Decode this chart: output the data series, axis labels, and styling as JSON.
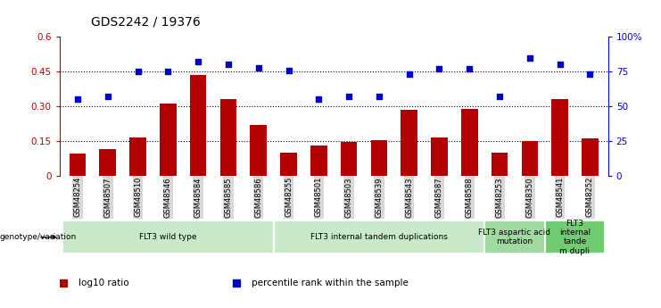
{
  "title": "GDS2242 / 19376",
  "samples": [
    "GSM48254",
    "GSM48507",
    "GSM48510",
    "GSM48546",
    "GSM48584",
    "GSM48585",
    "GSM48586",
    "GSM48255",
    "GSM48501",
    "GSM48503",
    "GSM48539",
    "GSM48543",
    "GSM48587",
    "GSM48588",
    "GSM48253",
    "GSM48350",
    "GSM48541",
    "GSM48252"
  ],
  "bar_values": [
    0.095,
    0.115,
    0.165,
    0.31,
    0.435,
    0.33,
    0.22,
    0.1,
    0.13,
    0.145,
    0.155,
    0.285,
    0.165,
    0.29,
    0.1,
    0.15,
    0.33,
    0.16
  ],
  "dot_values_pct": [
    55,
    57,
    75,
    75,
    82,
    80,
    78,
    76,
    55,
    57,
    57,
    73,
    77,
    77,
    57,
    85,
    80,
    73
  ],
  "groups": [
    {
      "label": "FLT3 wild type",
      "start": 0,
      "end": 6,
      "color": "#c8eac8"
    },
    {
      "label": "FLT3 internal tandem duplications",
      "start": 7,
      "end": 13,
      "color": "#c8eac8"
    },
    {
      "label": "FLT3 aspartic acid\nmutation",
      "start": 14,
      "end": 15,
      "color": "#a0daa0"
    },
    {
      "label": "FLT3\ninternal\ntande\nm dupli",
      "start": 16,
      "end": 17,
      "color": "#70cc70"
    }
  ],
  "bar_color": "#b30000",
  "dot_color": "#0000cc",
  "ylim_left": [
    0,
    0.6
  ],
  "ylim_right": [
    0,
    100
  ],
  "yticks_left": [
    0,
    0.15,
    0.3,
    0.45,
    0.6
  ],
  "ytick_labels_left": [
    "0",
    "0.15",
    "0.30",
    "0.45",
    "0.6"
  ],
  "yticks_right": [
    0,
    25,
    50,
    75,
    100
  ],
  "ytick_labels_right": [
    "0",
    "25",
    "50",
    "75",
    "100%"
  ],
  "hlines": [
    0.15,
    0.3,
    0.45
  ],
  "legend_items": [
    {
      "label": "log10 ratio",
      "color": "#b30000"
    },
    {
      "label": "percentile rank within the sample",
      "color": "#0000cc"
    }
  ],
  "genotype_label": "genotype/variation",
  "background_color": "#ffffff",
  "xtick_bg": "#d8d8d8"
}
